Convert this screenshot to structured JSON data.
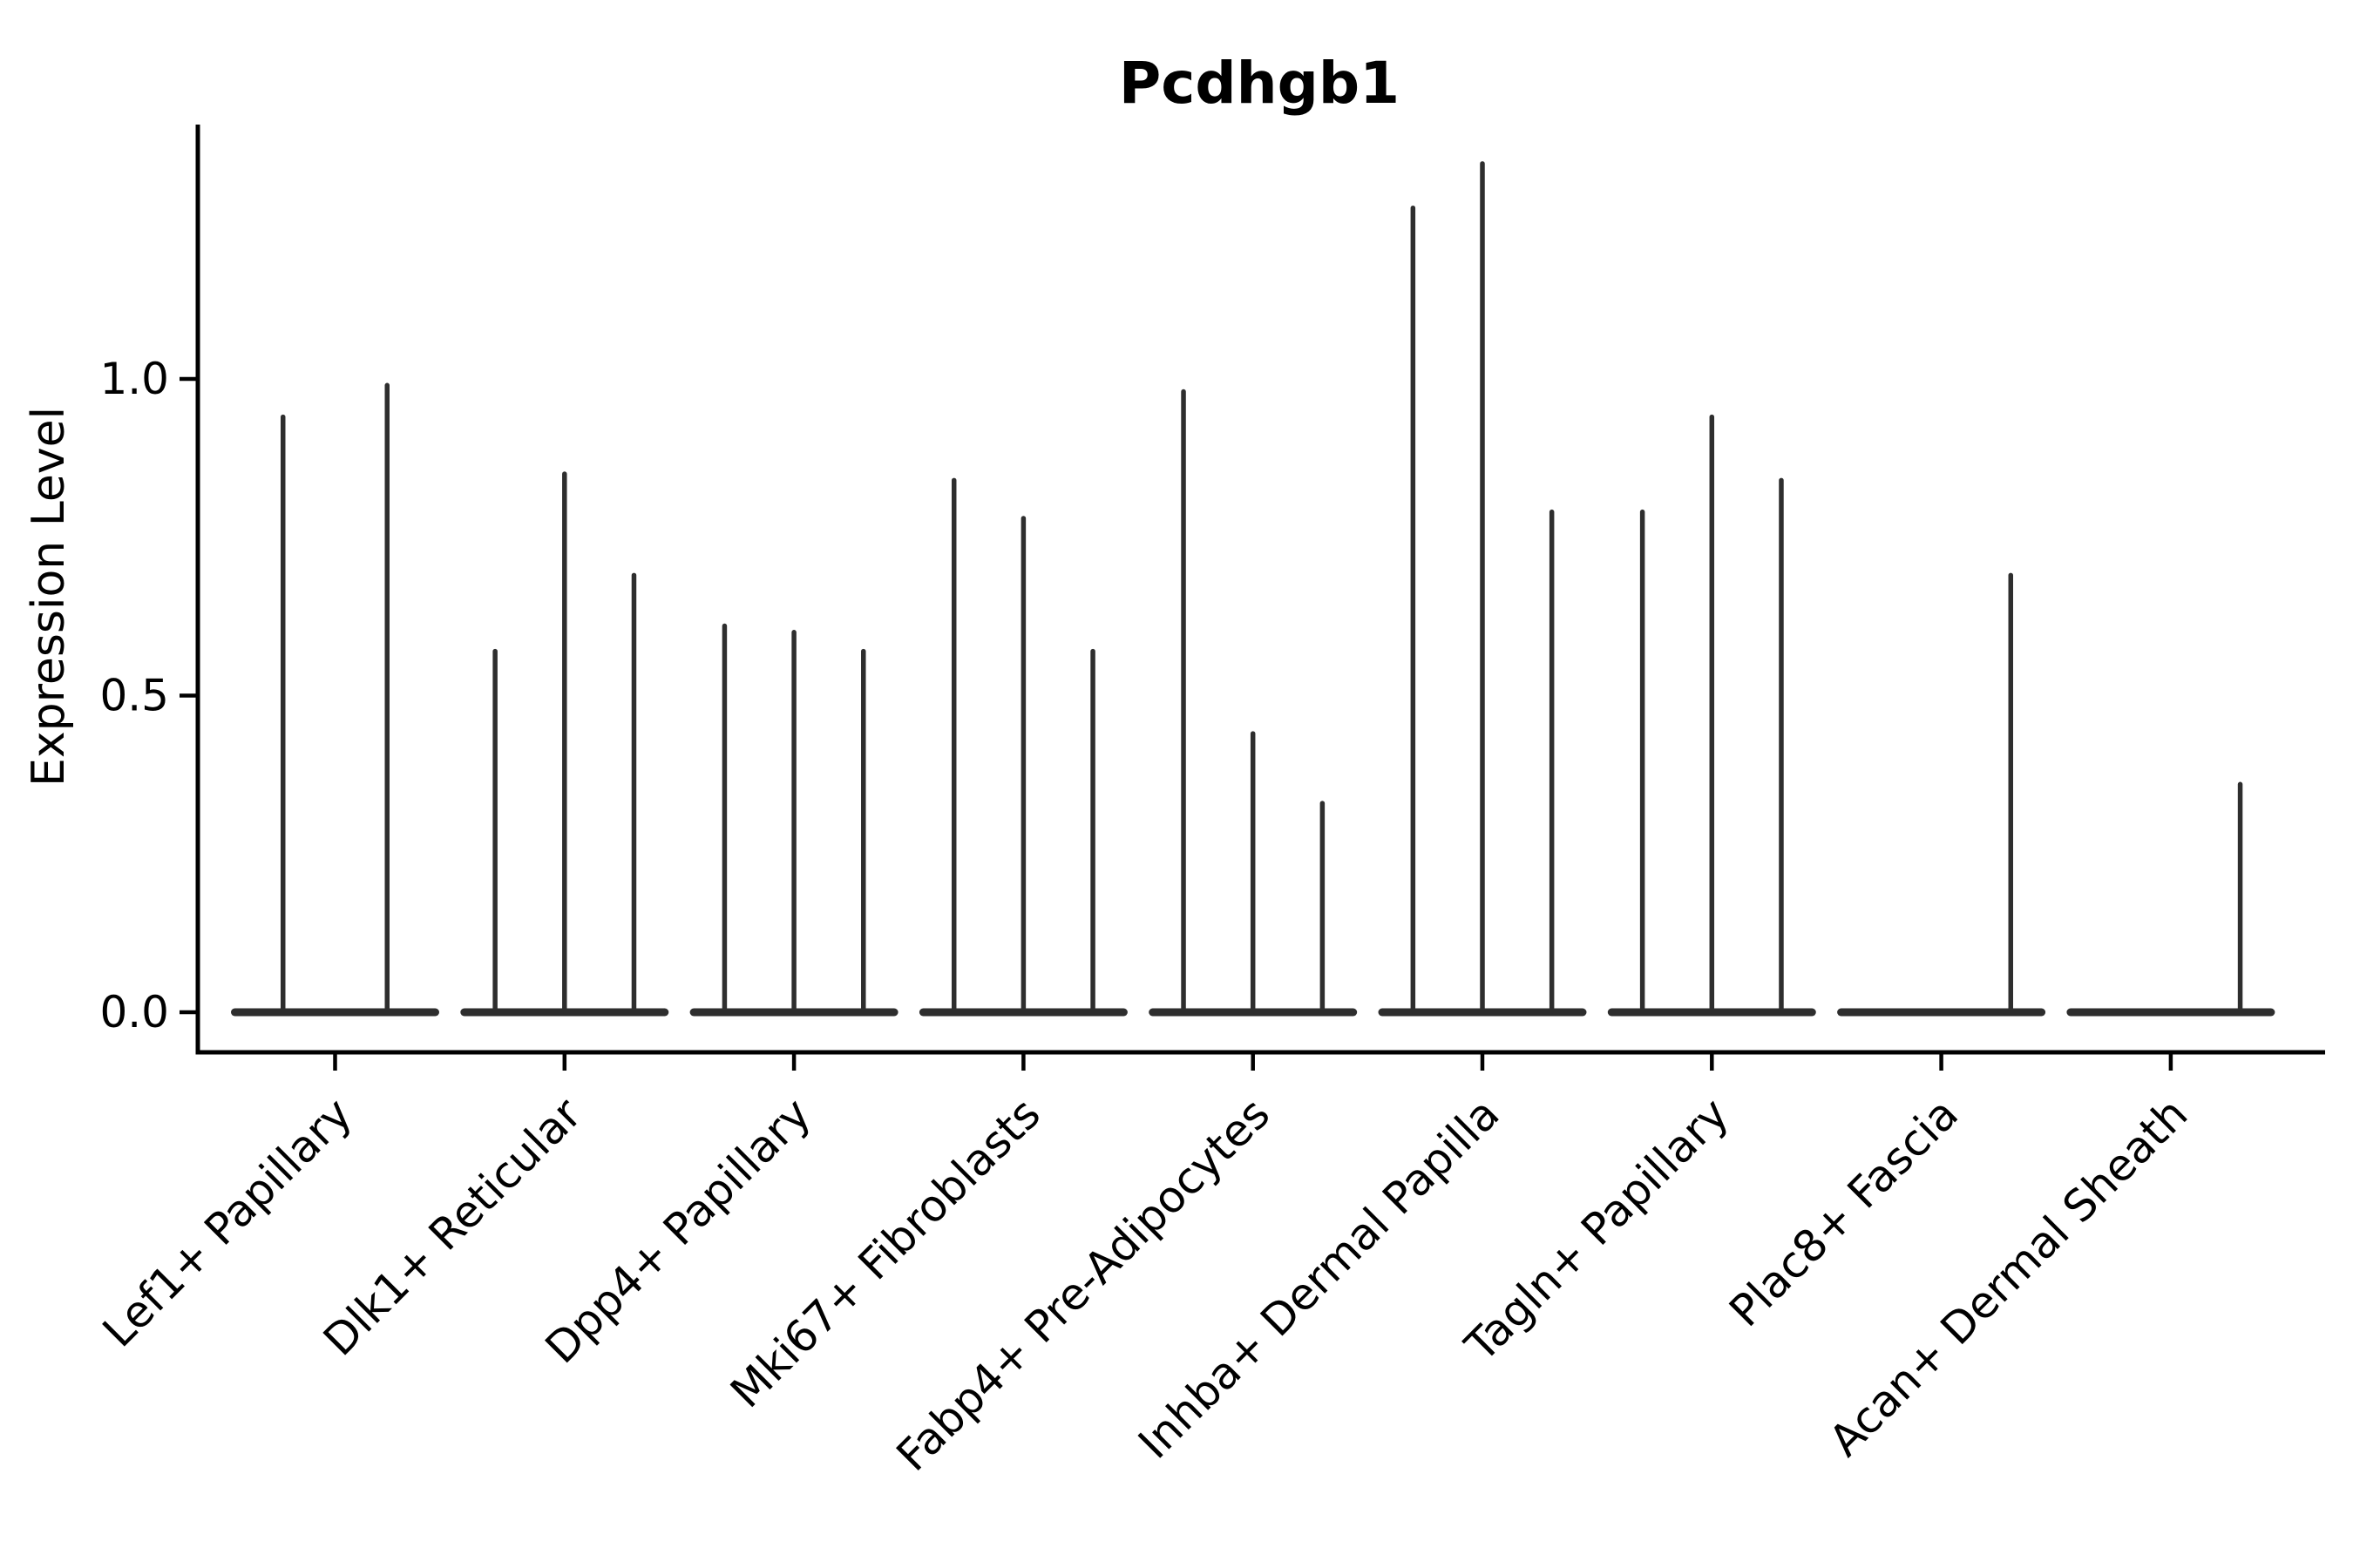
{
  "chart_data": {
    "type": "violin",
    "title": "Pcdhgb1",
    "xlabel": "",
    "ylabel": "Expression Level",
    "yticks": [
      0.0,
      0.5,
      1.0
    ],
    "ylim": [
      -0.06,
      1.4
    ],
    "grid": false,
    "legend": "none",
    "description": "Split violin plot of gene expression; expression is near zero in most cells so each violin collapses to a flat base at 0 with a thin density spike rising to the maximum expression value.",
    "categories": [
      "Lef1+ Papillary",
      "Dlk1+ Reticular",
      "Dpp4+ Papillary",
      "Mki67+ Fibroblasts",
      "Fabp4+ Pre-Adipocytes",
      "Inhba+ Dermal Papilla",
      "Tagln+ Papillary",
      "Plac8+ Fascia",
      "Acan+ Dermal Sheath"
    ],
    "series": [
      {
        "category": "Lef1+ Papillary",
        "spike_max_values": [
          0.94,
          0.99
        ]
      },
      {
        "category": "Dlk1+ Reticular",
        "spike_max_values": [
          0.57,
          0.85,
          0.69
        ]
      },
      {
        "category": "Dpp4+ Papillary",
        "spike_max_values": [
          0.61,
          0.6,
          0.57
        ]
      },
      {
        "category": "Mki67+ Fibroblasts",
        "spike_max_values": [
          0.84,
          0.78,
          0.57
        ]
      },
      {
        "category": "Fabp4+ Pre-Adipocytes",
        "spike_max_values": [
          0.98,
          0.44,
          0.33
        ]
      },
      {
        "category": "Inhba+ Dermal Papilla",
        "spike_max_values": [
          1.27,
          1.34,
          0.79
        ]
      },
      {
        "category": "Tagln+ Papillary",
        "spike_max_values": [
          0.79,
          0.94,
          0.84
        ]
      },
      {
        "category": "Plac8+ Fascia",
        "spike_max_values": [
          0.0,
          0.0,
          0.69
        ]
      },
      {
        "category": "Acan+ Dermal Sheath",
        "spike_max_values": [
          0.0,
          0.0,
          0.36
        ]
      }
    ],
    "colors": {
      "violin": "#2e2e2e",
      "axis": "#000000",
      "text": "#000000",
      "background": "#ffffff"
    }
  }
}
